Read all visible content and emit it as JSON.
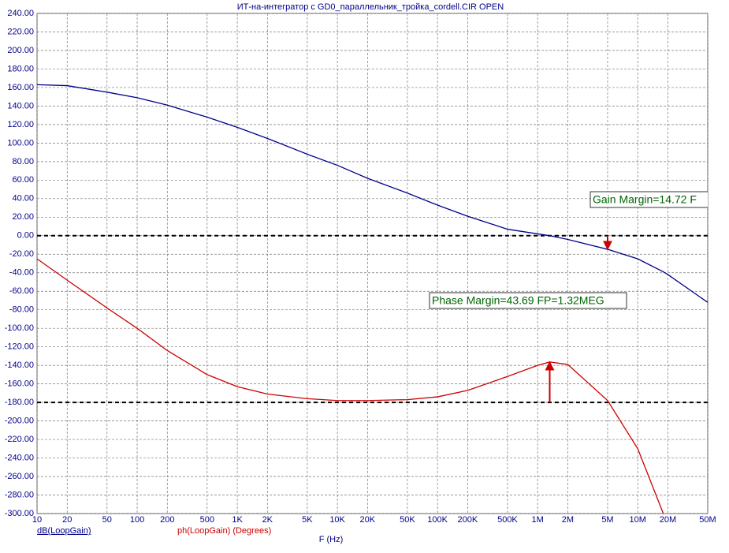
{
  "chart_data": {
    "type": "line",
    "title": "ИТ-на-интегратор с GD0_параллельник_тройка_cordell.CIR OPEN",
    "x_label": "F (Hz)",
    "x": [
      10,
      20,
      50,
      100,
      200,
      500,
      1000,
      2000,
      5000,
      10000,
      20000,
      50000,
      100000,
      200000,
      500000,
      1000000,
      1320000,
      2000000,
      5000000,
      10000000,
      18000000,
      20000000,
      50000000
    ],
    "series": [
      {
        "name": "dB(LoopGain)",
        "color": "#00008b",
        "values": [
          163,
          162,
          155,
          149,
          141,
          128,
          117,
          105,
          88,
          76,
          62,
          46,
          33,
          21,
          7,
          2,
          0,
          -4,
          -14.72,
          -25,
          -39,
          -42,
          -72
        ]
      },
      {
        "name": "ph(LoopGain) (Degrees)",
        "color": "#cc0000",
        "values": [
          -25,
          -48,
          -78,
          -100,
          -124,
          -150,
          -163,
          -171,
          -176,
          -178,
          -178,
          -177,
          -174,
          -167,
          -152,
          -140,
          -136.31,
          -139,
          -178,
          -230,
          -300,
          null,
          null
        ]
      }
    ],
    "log_x": true,
    "xlim": [
      10,
      50000000
    ],
    "xticks": [
      10,
      20,
      50,
      100,
      200,
      500,
      {
        "value": 1000,
        "label": "1K"
      },
      {
        "value": 2000,
        "label": "2K"
      },
      {
        "value": 5000,
        "label": "5K"
      },
      {
        "value": 10000,
        "label": "10K"
      },
      {
        "value": 20000,
        "label": "20K"
      },
      {
        "value": 50000,
        "label": "50K"
      },
      {
        "value": 100000,
        "label": "100K"
      },
      {
        "value": 200000,
        "label": "200K"
      },
      {
        "value": 500000,
        "label": "500K"
      },
      {
        "value": 1000000,
        "label": "1M"
      },
      {
        "value": 2000000,
        "label": "2M"
      },
      {
        "value": 5000000,
        "label": "5M"
      },
      {
        "value": 10000000,
        "label": "10M"
      },
      {
        "value": 20000000,
        "label": "20M"
      },
      {
        "value": 50000000,
        "label": "50M"
      }
    ],
    "ylim": [
      -300,
      240
    ],
    "yticks": [
      {
        "value": 240,
        "label": "240.00"
      },
      {
        "value": 220,
        "label": "220.00"
      },
      {
        "value": 200,
        "label": "200.00"
      },
      {
        "value": 180,
        "label": "180.00"
      },
      {
        "value": 160,
        "label": "160.00"
      },
      {
        "value": 140,
        "label": "140.00"
      },
      {
        "value": 120,
        "label": "120.00"
      },
      {
        "value": 100,
        "label": "100.00"
      },
      {
        "value": 80,
        "label": "80.00"
      },
      {
        "value": 60,
        "label": "60.00"
      },
      {
        "value": 40,
        "label": "40.00"
      },
      {
        "value": 20,
        "label": "20.00"
      },
      {
        "value": 0,
        "label": "0.00"
      },
      {
        "value": -20,
        "label": "-20.00"
      },
      {
        "value": -40,
        "label": "-40.00"
      },
      {
        "value": -60,
        "label": "-60.00"
      },
      {
        "value": -80,
        "label": "-80.00"
      },
      {
        "value": -100,
        "label": "-100.00"
      },
      {
        "value": -120,
        "label": "-120.00"
      },
      {
        "value": -140,
        "label": "-140.00"
      },
      {
        "value": -160,
        "label": "-160.00"
      },
      {
        "value": -180,
        "label": "-180.00"
      },
      {
        "value": -200,
        "label": "-200.00"
      },
      {
        "value": -220,
        "label": "-220.00"
      },
      {
        "value": -240,
        "label": "-240.00"
      },
      {
        "value": -260,
        "label": "-260.00"
      },
      {
        "value": -280,
        "label": "-280.00"
      },
      {
        "value": -300,
        "label": "-300.00"
      }
    ],
    "grid": true,
    "reference_lines": [
      0,
      -180
    ],
    "markers": [
      {
        "label": "Gain Margin=14.72 F",
        "x": 5000000,
        "from": 0,
        "to": -14.72
      },
      {
        "label": "Phase Margin=43.69 FP=1.32MEG",
        "x": 1320000,
        "from": -180,
        "to": -136.31
      }
    ]
  }
}
